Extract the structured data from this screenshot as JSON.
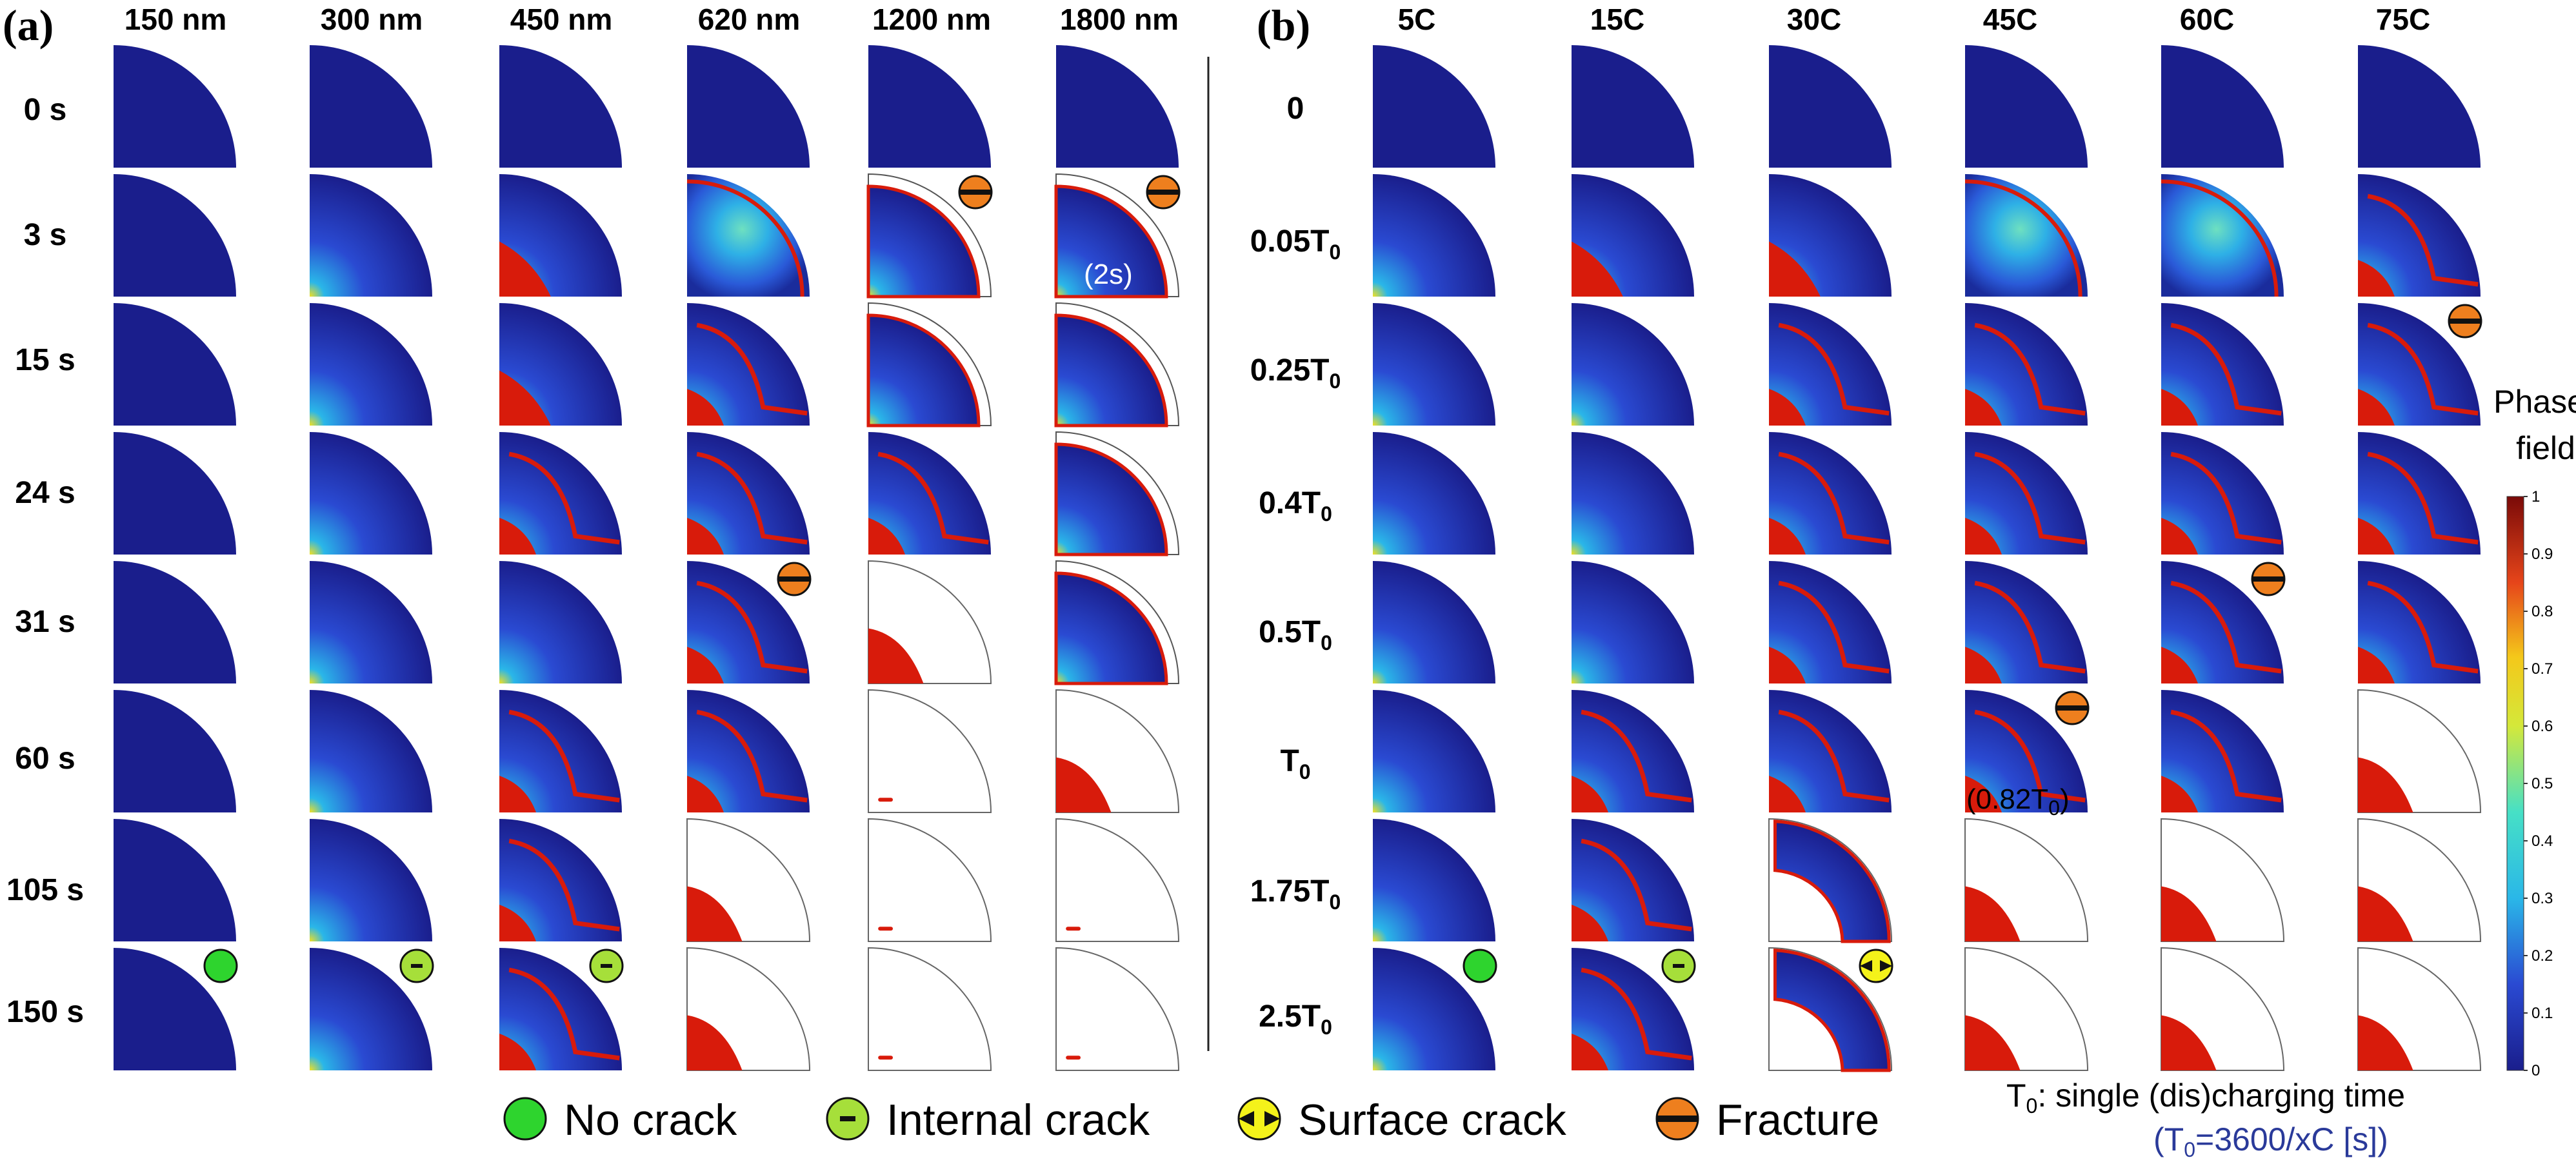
{
  "panel_a": {
    "label": "(a)",
    "columns": [
      "150 nm",
      "300 nm",
      "450 nm",
      "620 nm",
      "1200 nm",
      "1800 nm"
    ],
    "rows": [
      "0 s",
      "3 s",
      "15 s",
      "24 s",
      "31 s",
      "60 s",
      "105 s",
      "150 s"
    ],
    "annotations": [
      {
        "row": 1,
        "col": 4,
        "mark": "fracture"
      },
      {
        "row": 1,
        "col": 5,
        "mark": "fracture"
      },
      {
        "row": 4,
        "col": 3,
        "mark": "fracture"
      },
      {
        "row": 7,
        "col": 0,
        "mark": "no-crack"
      },
      {
        "row": 7,
        "col": 1,
        "mark": "internal"
      },
      {
        "row": 7,
        "col": 2,
        "mark": "internal"
      }
    ],
    "cell_note": {
      "row": 1,
      "col": 5,
      "text": "(2s)"
    }
  },
  "panel_b": {
    "label": "(b)",
    "columns": [
      "5C",
      "15C",
      "30C",
      "45C",
      "60C",
      "75C"
    ],
    "rows": [
      {
        "main": "0",
        "sub": ""
      },
      {
        "main": "0.05T",
        "sub": "0"
      },
      {
        "main": "0.25T",
        "sub": "0"
      },
      {
        "main": "0.4T",
        "sub": "0"
      },
      {
        "main": "0.5T",
        "sub": "0"
      },
      {
        "main": "T",
        "sub": "0"
      },
      {
        "main": "1.75T",
        "sub": "0"
      },
      {
        "main": "2.5T",
        "sub": "0"
      }
    ],
    "annotations": [
      {
        "row": 2,
        "col": 5,
        "mark": "fracture"
      },
      {
        "row": 4,
        "col": 4,
        "mark": "fracture"
      },
      {
        "row": 5,
        "col": 3,
        "mark": "fracture"
      },
      {
        "row": 7,
        "col": 0,
        "mark": "no-crack"
      },
      {
        "row": 7,
        "col": 1,
        "mark": "internal"
      },
      {
        "row": 7,
        "col": 2,
        "mark": "surface"
      }
    ],
    "cell_note": {
      "row": 5,
      "col": 3,
      "text_main": "(0.82T",
      "text_sub": "0",
      "text_end": ")"
    }
  },
  "cell_states": {
    "a": [
      [
        "solid",
        "solid",
        "solid",
        "solid",
        "solid",
        "solid"
      ],
      [
        "solid",
        "grad",
        "spot",
        "field",
        "outline",
        "outline"
      ],
      [
        "solid",
        "grad",
        "spot",
        "crack",
        "outline",
        "outline"
      ],
      [
        "solid",
        "grad",
        "crack",
        "crack",
        "crack",
        "outline"
      ],
      [
        "solid",
        "grad",
        "grad",
        "crack",
        "frag",
        "outline"
      ],
      [
        "solid",
        "grad",
        "crack",
        "crack",
        "empty",
        "frag"
      ],
      [
        "solid",
        "grad",
        "crack",
        "frag",
        "empty",
        "empty"
      ],
      [
        "solid",
        "grad",
        "crack",
        "frag",
        "empty",
        "empty"
      ]
    ],
    "b": [
      [
        "solid",
        "solid",
        "solid",
        "solid",
        "solid",
        "solid"
      ],
      [
        "grad",
        "spot",
        "spot",
        "field",
        "field",
        "crack"
      ],
      [
        "grad",
        "grad",
        "crack",
        "crack",
        "crack",
        "crack"
      ],
      [
        "grad",
        "grad",
        "crack",
        "crack",
        "crack",
        "crack"
      ],
      [
        "grad",
        "grad",
        "crack",
        "crack",
        "crack",
        "crack"
      ],
      [
        "grad",
        "crack",
        "crack",
        "crack",
        "crack",
        "frag"
      ],
      [
        "grad",
        "crack",
        "surface",
        "frag",
        "frag",
        "frag"
      ],
      [
        "grad",
        "crack",
        "surface",
        "frag",
        "frag",
        "frag"
      ]
    ]
  },
  "legend": {
    "items": [
      {
        "mark": "no-crack",
        "label": "No crack"
      },
      {
        "mark": "internal",
        "label": "Internal crack"
      },
      {
        "mark": "surface",
        "label": "Surface crack"
      },
      {
        "mark": "fracture",
        "label": "Fracture"
      }
    ]
  },
  "colorbar": {
    "title_line1": "Phase",
    "title_line2": "field",
    "ticks": [
      "1",
      "0.9",
      "0.8",
      "0.7",
      "0.6",
      "0.5",
      "0.4",
      "0.3",
      "0.2",
      "0.1",
      "0"
    ]
  },
  "t0_note": {
    "prefix": "T",
    "sub": "0",
    "text": ": single (dis)charging time",
    "formula_open": "(T",
    "formula_sub": "0",
    "formula_text": "=3600/xC [s])"
  },
  "colors": {
    "navy": "#1a1e8c",
    "crack_red": "#d81b0b",
    "no_crack": "#2ed42e",
    "internal": "#a6df3a",
    "surface": "#f4f21a",
    "fracture": "#ee7f1e"
  }
}
